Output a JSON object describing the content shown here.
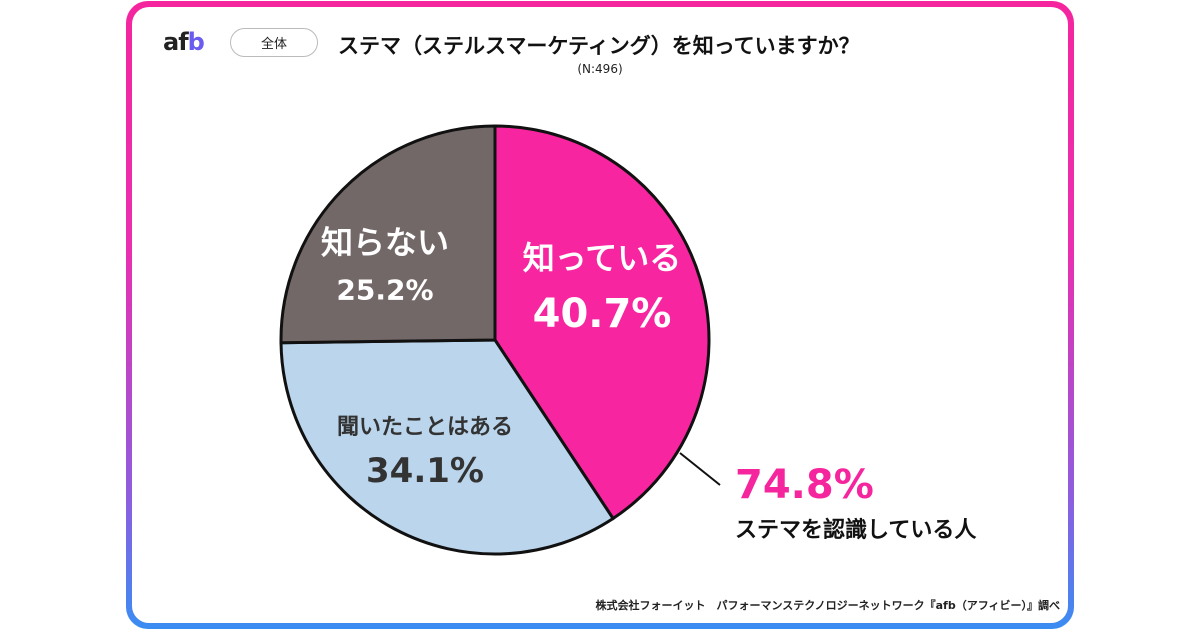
{
  "header": {
    "logo": "afb",
    "tag": "全体",
    "title": "ステマ（ステルスマーケティング）を知っていますか？",
    "n": "(N:496)"
  },
  "colors": {
    "border_top": "#f5259e",
    "border_bottom": "#3a8df2"
  },
  "chart_data": {
    "type": "pie",
    "title": "ステマ（ステルスマーケティング）を知っていますか？",
    "start": "12 o'clock, clockwise",
    "slices": [
      {
        "label": "知っている",
        "value": 40.7,
        "value_label": "40.7%",
        "color": "#f7259f",
        "text_color": "#ffffff"
      },
      {
        "label": "聞いたことはある",
        "value": 34.1,
        "value_label": "34.1%",
        "color": "#bad5ec",
        "text_color": "#333333"
      },
      {
        "label": "知らない",
        "value": 25.2,
        "value_label": "25.2%",
        "color": "#736868",
        "text_color": "#ffffff"
      }
    ],
    "annotation": {
      "value": "74.8%",
      "text": "ステマを認識している人"
    }
  },
  "footer": "株式会社フォーイット　パフォーマンステクノロジーネットワーク『afb（アフィビー）』調べ"
}
